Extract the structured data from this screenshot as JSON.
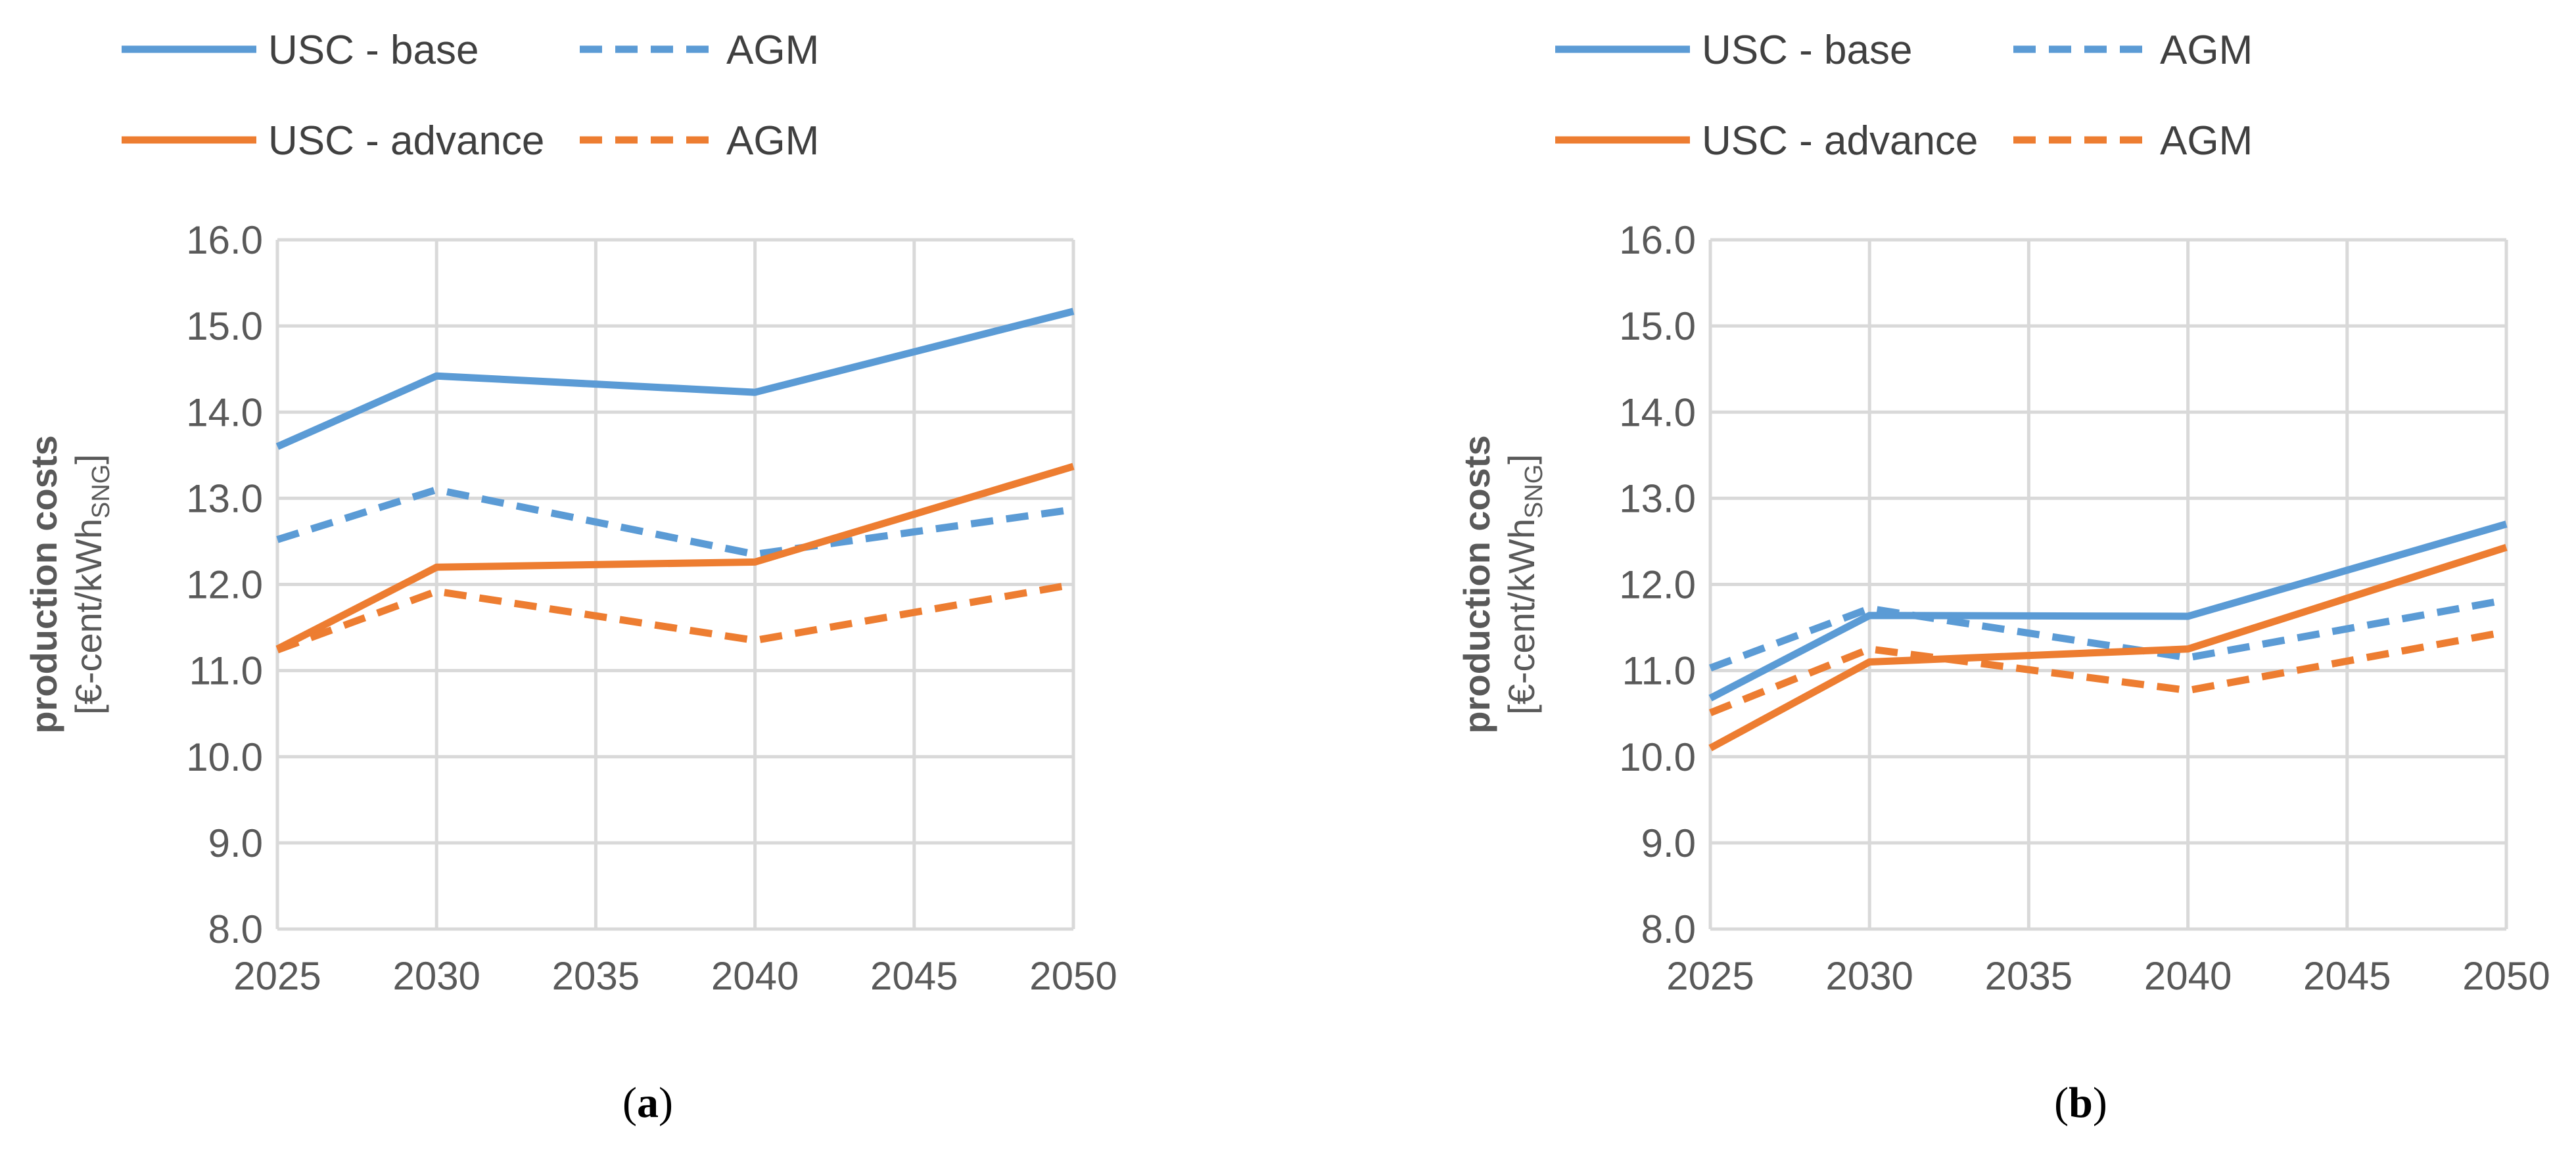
{
  "figure": {
    "colors": {
      "blue": "#5b9bd5",
      "orange": "#ed7d31",
      "grid": "#d9d9d9",
      "text": "#595959"
    }
  },
  "chart_data": [
    {
      "type": "line",
      "panel_label": "a",
      "ylabel": "production costs",
      "ylabel_line2_prefix": "[€-cent/kWh",
      "ylabel_subscript": "SNG",
      "ylabel_line2_suffix": "]",
      "x": [
        2025,
        2030,
        2040,
        2050
      ],
      "xticks": [
        "2025",
        "2030",
        "2035",
        "2040",
        "2045",
        "2050"
      ],
      "xlim": [
        2025,
        2050
      ],
      "yticks": [
        "8.0",
        "9.0",
        "10.0",
        "11.0",
        "12.0",
        "13.0",
        "14.0",
        "15.0",
        "16.0"
      ],
      "ylim": [
        8.0,
        16.0
      ],
      "grid": true,
      "legend": "top",
      "series": [
        {
          "name": "USC - base",
          "color": "#5b9bd5",
          "dash": "solid",
          "values": [
            13.6,
            14.42,
            14.23,
            15.17
          ]
        },
        {
          "name": "AGM",
          "color": "#5b9bd5",
          "dash": "dashed",
          "values": [
            12.52,
            13.1,
            12.35,
            12.87
          ]
        },
        {
          "name": "USC - advance",
          "color": "#ed7d31",
          "dash": "solid",
          "values": [
            11.25,
            12.2,
            12.26,
            13.37
          ]
        },
        {
          "name": "AGM",
          "color": "#ed7d31",
          "dash": "dashed",
          "values": [
            11.24,
            11.92,
            11.35,
            12.0
          ]
        }
      ]
    },
    {
      "type": "line",
      "panel_label": "b",
      "ylabel": "production costs",
      "ylabel_line2_prefix": "[€-cent/kWh",
      "ylabel_subscript": "SNG",
      "ylabel_line2_suffix": "]",
      "x": [
        2025,
        2030,
        2040,
        2050
      ],
      "xticks": [
        "2025",
        "2030",
        "2035",
        "2040",
        "2045",
        "2050"
      ],
      "xlim": [
        2025,
        2050
      ],
      "yticks": [
        "8.0",
        "9.0",
        "10.0",
        "11.0",
        "12.0",
        "13.0",
        "14.0",
        "15.0",
        "16.0"
      ],
      "ylim": [
        8.0,
        16.0
      ],
      "grid": true,
      "legend": "top",
      "series": [
        {
          "name": "USC - base",
          "color": "#5b9bd5",
          "dash": "solid",
          "values": [
            10.68,
            11.64,
            11.63,
            12.7
          ]
        },
        {
          "name": "AGM",
          "color": "#5b9bd5",
          "dash": "dashed",
          "values": [
            11.03,
            11.72,
            11.15,
            11.82
          ]
        },
        {
          "name": "USC - advance",
          "color": "#ed7d31",
          "dash": "solid",
          "values": [
            10.1,
            11.1,
            11.25,
            12.43
          ]
        },
        {
          "name": "AGM",
          "color": "#ed7d31",
          "dash": "dashed",
          "values": [
            10.51,
            11.25,
            10.77,
            11.45
          ]
        }
      ]
    }
  ]
}
